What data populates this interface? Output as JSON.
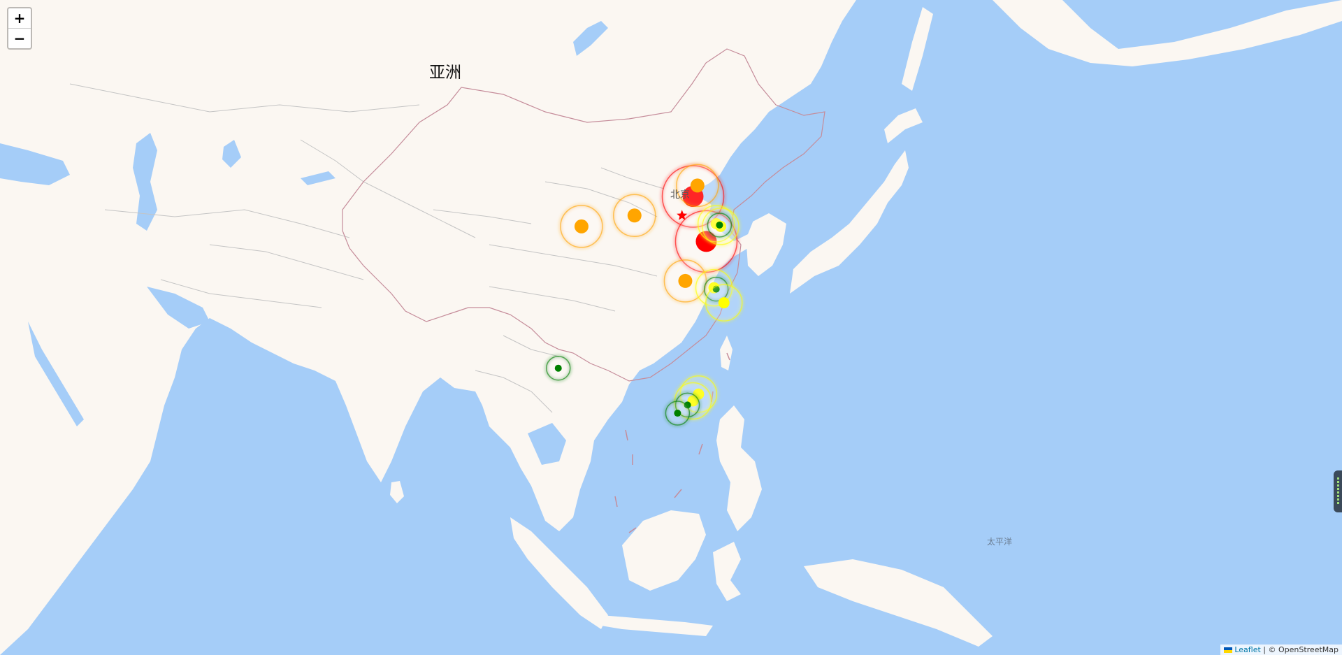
{
  "map": {
    "region_label": "亚洲",
    "ocean_label": "太平洋",
    "city_label": "北京",
    "zoom_in_label": "+",
    "zoom_out_label": "−",
    "attribution_link": "Leaflet",
    "attribution_text": "| © OpenStreetMap",
    "colors": {
      "water": "#a5cdf8",
      "land": "#fbf7f2",
      "border": "#b8b8b8",
      "china_border": "#c58c9a",
      "level_red": "#ff0000",
      "level_orange": "#ffa500",
      "level_yellow": "#ffff00",
      "level_green": "#008000"
    }
  },
  "markers": [
    {
      "name": "marker-beijing",
      "color": "red",
      "lon": 116.4,
      "lat": 40.2
    },
    {
      "name": "marker-shandong",
      "color": "red",
      "lon": 117.6,
      "lat": 36.9
    },
    {
      "name": "marker-hebei-north",
      "color": "orange",
      "lon": 116.8,
      "lat": 41.0
    },
    {
      "name": "marker-inner-mongolia",
      "color": "orange",
      "lon": 111.1,
      "lat": 38.8
    },
    {
      "name": "marker-ningxia",
      "color": "orange",
      "lon": 106.3,
      "lat": 38.0
    },
    {
      "name": "marker-henan",
      "color": "orange",
      "lon": 115.7,
      "lat": 34.0
    },
    {
      "name": "marker-yellow-sea-1",
      "color": "yellow",
      "lon": 118.5,
      "lat": 38.2
    },
    {
      "name": "marker-yellow-sea-2",
      "color": "yellow",
      "lon": 118.9,
      "lat": 38.0
    },
    {
      "name": "marker-bohai-green",
      "color": "green",
      "lon": 118.8,
      "lat": 38.1
    },
    {
      "name": "marker-jiangsu-1",
      "color": "yellow",
      "lon": 118.3,
      "lat": 33.5
    },
    {
      "name": "marker-jiangsu-green",
      "color": "green",
      "lon": 118.5,
      "lat": 33.4
    },
    {
      "name": "marker-jiangsu-2",
      "color": "yellow",
      "lon": 119.2,
      "lat": 32.4
    },
    {
      "name": "marker-fujian-1",
      "color": "yellow",
      "lon": 116.9,
      "lat": 25.7
    },
    {
      "name": "marker-fujian-2",
      "color": "yellow",
      "lon": 116.4,
      "lat": 25.2
    },
    {
      "name": "marker-fujian-green",
      "color": "green",
      "lon": 115.9,
      "lat": 24.9
    },
    {
      "name": "marker-guangdong-green",
      "color": "green",
      "lon": 115.0,
      "lat": 24.3
    },
    {
      "name": "marker-sichuan-green",
      "color": "green",
      "lon": 104.2,
      "lat": 27.6
    }
  ],
  "capital_marker": {
    "name": "capital-star",
    "color": "red",
    "lon": 115.4,
    "lat": 38.8
  }
}
